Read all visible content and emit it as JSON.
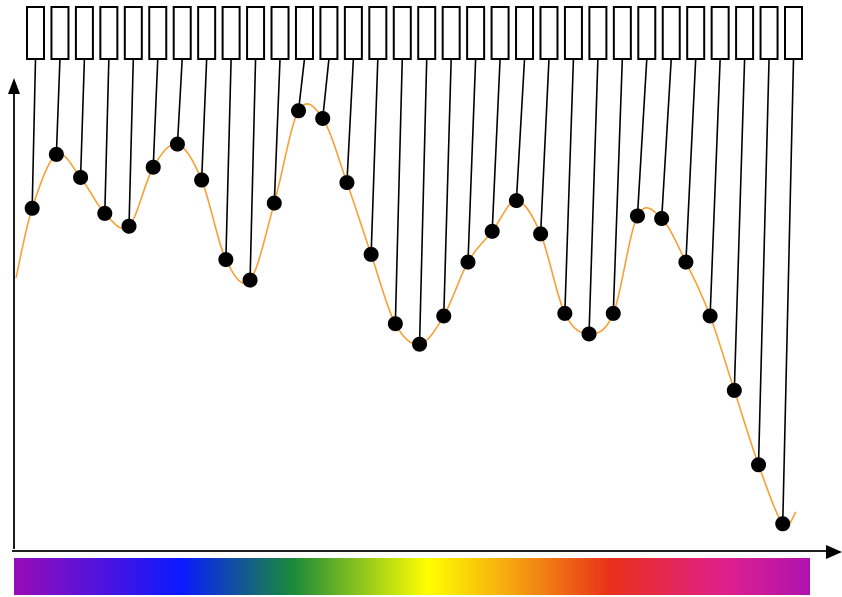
{
  "chart_data": {
    "type": "line",
    "title": "",
    "xlabel": "",
    "ylabel": "",
    "grid": false,
    "legend": "none",
    "has_spectrum_bar": true,
    "curve_color": "#f7a035",
    "point_color": "#000000",
    "spectrum_colors": [
      "#9a0bb8",
      "#0a1aff",
      "#1a8a3a",
      "#ffff00",
      "#f5a010",
      "#e8301a",
      "#e0208a",
      "#b012b0"
    ],
    "points": [
      {
        "label": "",
        "x": 1,
        "y": 63.0
      },
      {
        "label": "",
        "x": 2,
        "y": 73.5
      },
      {
        "label": "",
        "x": 3,
        "y": 69.0
      },
      {
        "label": "",
        "x": 4,
        "y": 62.0
      },
      {
        "label": "",
        "x": 5,
        "y": 59.5
      },
      {
        "label": "",
        "x": 6,
        "y": 71.0
      },
      {
        "label": "",
        "x": 7,
        "y": 75.5
      },
      {
        "label": "",
        "x": 8,
        "y": 68.5
      },
      {
        "label": "",
        "x": 9,
        "y": 53.0
      },
      {
        "label": "",
        "x": 10,
        "y": 49.0
      },
      {
        "label": "",
        "x": 11,
        "y": 64.0
      },
      {
        "label": "",
        "x": 12,
        "y": 82.0
      },
      {
        "label": "",
        "x": 13,
        "y": 80.5
      },
      {
        "label": "",
        "x": 14,
        "y": 68.0
      },
      {
        "label": "",
        "x": 15,
        "y": 54.0
      },
      {
        "label": "",
        "x": 16,
        "y": 40.5
      },
      {
        "label": "",
        "x": 17,
        "y": 36.5
      },
      {
        "label": "",
        "x": 18,
        "y": 42.0
      },
      {
        "label": "",
        "x": 19,
        "y": 52.5
      },
      {
        "label": "",
        "x": 20,
        "y": 58.5
      },
      {
        "label": "",
        "x": 21,
        "y": 64.5
      },
      {
        "label": "",
        "x": 22,
        "y": 58.0
      },
      {
        "label": "",
        "x": 23,
        "y": 42.5
      },
      {
        "label": "",
        "x": 24,
        "y": 38.5
      },
      {
        "label": "",
        "x": 25,
        "y": 42.5
      },
      {
        "label": "",
        "x": 26,
        "y": 61.5
      },
      {
        "label": "",
        "x": 27,
        "y": 61.0
      },
      {
        "label": "",
        "x": 28,
        "y": 52.5
      },
      {
        "label": "",
        "x": 29,
        "y": 42.0
      },
      {
        "label": "",
        "x": 30,
        "y": 27.5
      },
      {
        "label": "",
        "x": 31,
        "y": 13.0
      },
      {
        "label": "",
        "x": 32,
        "y": 1.5
      }
    ],
    "xlim": [
      0.25,
      32.3
    ],
    "ylim": [
      -4,
      88
    ]
  }
}
